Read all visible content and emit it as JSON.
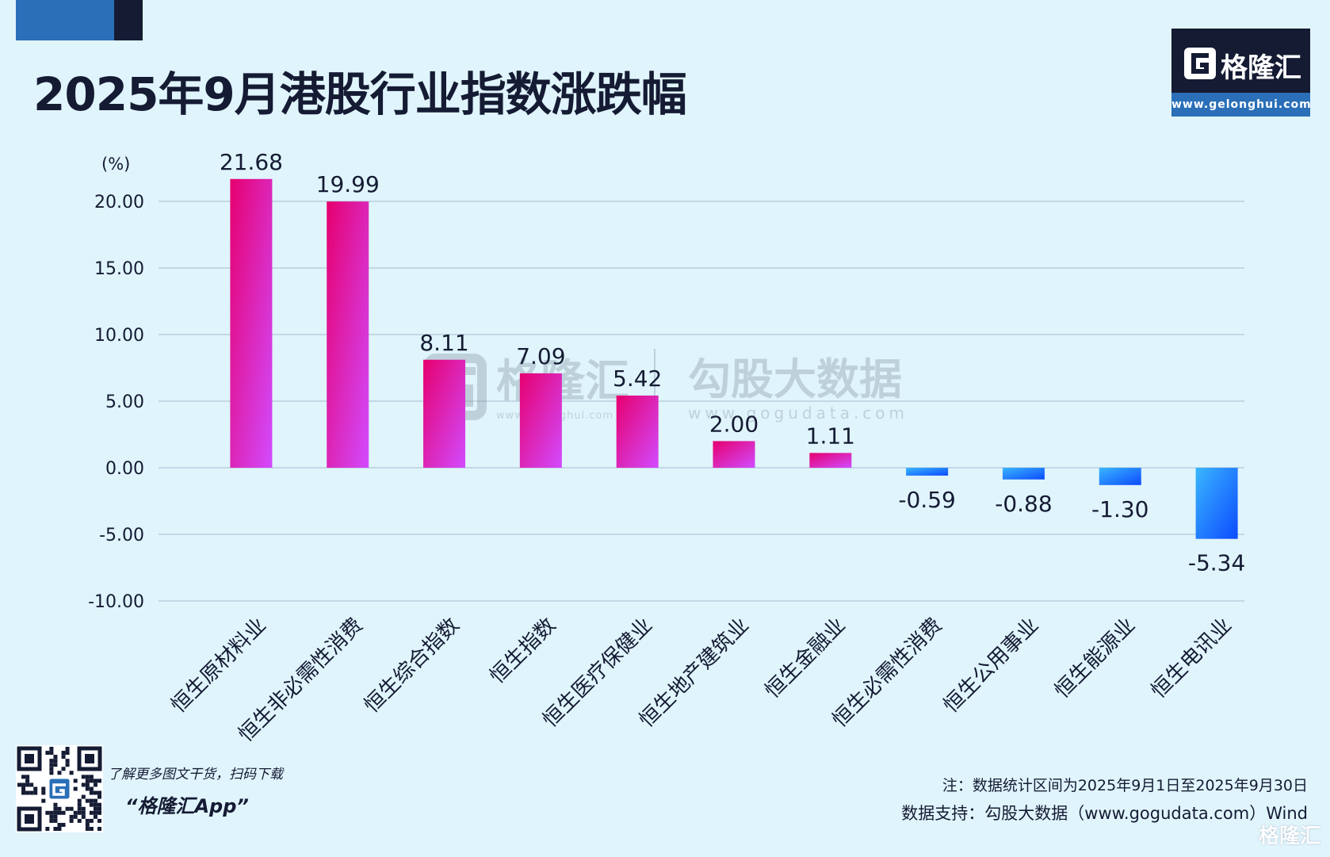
{
  "header": {
    "title": "2025年9月港股行业指数涨跌幅"
  },
  "logo": {
    "name": "格隆汇",
    "url": "www.gelonghui.com"
  },
  "watermark": {
    "brand1": "格隆汇",
    "brand1_url": "www.gelonghui.com",
    "brand2": "勾股大数据",
    "brand2_url": "www.gogudata.com"
  },
  "chart_data": {
    "type": "bar",
    "title": "2025年9月港股行业指数涨跌幅",
    "ylabel": "(%)",
    "xlabel": "",
    "ylim": [
      -10,
      25
    ],
    "yticks": [
      -10,
      -5,
      0,
      5,
      10,
      15,
      20
    ],
    "ytick_labels": [
      "-10.00",
      "-5.00",
      "0.00",
      "5.00",
      "10.00",
      "15.00",
      "20.00"
    ],
    "categories": [
      "恒生原材料业",
      "恒生非必需性消费",
      "恒生综合指数",
      "恒生指数",
      "恒生医疗保健业",
      "恒生地产建筑业",
      "恒生金融业",
      "恒生必需性消费",
      "恒生公用事业",
      "恒生能源业",
      "恒生电讯业"
    ],
    "values": [
      21.68,
      19.99,
      8.11,
      7.09,
      5.42,
      2.0,
      1.11,
      -0.59,
      -0.88,
      -1.3,
      -5.34
    ],
    "value_labels": [
      "21.68",
      "19.99",
      "8.11",
      "7.09",
      "5.42",
      "2.00",
      "1.11",
      "-0.59",
      "-0.88",
      "-1.30",
      "-5.34"
    ],
    "grid": true,
    "colors": {
      "positive_top": "#e6006f",
      "positive_bottom": "#d24bff",
      "negative_top": "#39b6ff",
      "negative_bottom": "#0d4bff"
    }
  },
  "footer": {
    "qr_caption": "了解更多图文干货，扫码下载",
    "app_name": "“格隆汇App”",
    "note": "注：数据统计区间为2025年9月1日至2025年9月30日",
    "source": "数据支持：勾股大数据（www.gogudata.com）Wind",
    "corner_mark": "格隆汇"
  }
}
